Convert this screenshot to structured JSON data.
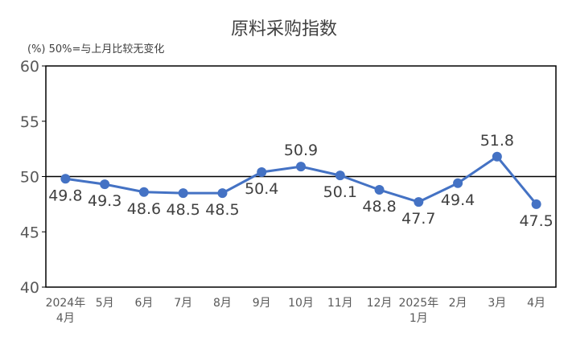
{
  "chart_data": {
    "type": "line",
    "title": "原料采购指数",
    "unit_note": "(%)  50%=与上月比较无变化",
    "categories": [
      [
        "2024年",
        "4月"
      ],
      [
        "5月"
      ],
      [
        "6月"
      ],
      [
        "7月"
      ],
      [
        "8月"
      ],
      [
        "9月"
      ],
      [
        "10月"
      ],
      [
        "11月"
      ],
      [
        "12月"
      ],
      [
        "2025年",
        "1月"
      ],
      [
        "2月"
      ],
      [
        "3月"
      ],
      [
        "4月"
      ]
    ],
    "series": [
      {
        "values": [
          49.8,
          49.3,
          48.6,
          48.5,
          48.5,
          50.4,
          50.9,
          50.1,
          48.8,
          47.7,
          49.4,
          51.8,
          47.5
        ]
      }
    ],
    "ylim": [
      40,
      60
    ],
    "yticks": [
      40,
      45,
      50,
      55,
      60
    ],
    "reference_line": 50,
    "grid": false,
    "line_color": "#4472C4"
  }
}
